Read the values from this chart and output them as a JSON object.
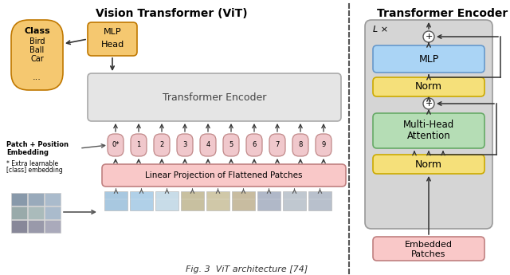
{
  "title_vit": "Vision Transformer (ViT)",
  "title_encoder": "Transformer Encoder",
  "caption": "Fig. 3  ViT architecture [74]",
  "bg_color": "#ffffff",
  "pink_light": "#f9c8c8",
  "orange_light": "#f5c870",
  "blue_light": "#aad4f5",
  "green_light": "#b5ddb5",
  "yellow_light": "#f5e07a",
  "class_fill": "#f5c870",
  "encoder_bg": "#d5d5d5",
  "dashed_color": "#555555",
  "token_fill": "#f0c8cc",
  "token_border": "#c08888",
  "arrow_color": "#333333"
}
